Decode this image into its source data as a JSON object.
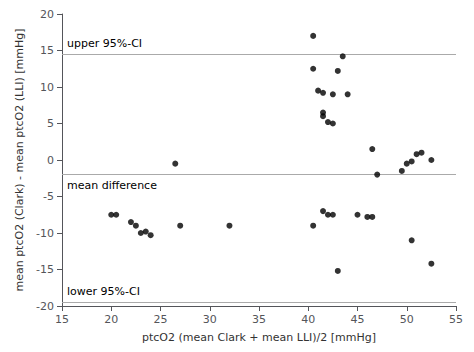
{
  "chart_data": {
    "type": "scatter",
    "x": [
      26.5,
      40.5,
      40.5,
      41.0,
      41.5,
      41.5,
      41.5,
      42.0,
      42.5,
      42.5,
      43.0,
      43.5,
      44.0,
      46.5,
      47.0,
      49.5,
      50.0,
      50.5,
      51.0,
      51.5,
      52.5,
      20.0,
      20.5,
      22.0,
      22.5,
      23.0,
      23.5,
      24.0,
      27.0,
      32.0,
      40.5,
      41.5,
      42.0,
      42.5,
      43.0,
      45.0,
      46.0,
      46.5,
      50.5,
      52.5
    ],
    "values": [
      -0.5,
      17.0,
      12.5,
      9.5,
      9.2,
      6.5,
      6.0,
      5.2,
      5.0,
      9.0,
      12.2,
      14.2,
      9.0,
      1.5,
      -2.0,
      -1.5,
      -0.5,
      -0.2,
      0.8,
      1.0,
      0.0,
      -7.5,
      -7.5,
      -8.5,
      -9.0,
      -10.0,
      -9.8,
      -10.3,
      -9.0,
      -9.0,
      -9.0,
      -7.0,
      -7.5,
      -7.5,
      -15.2,
      -7.5,
      -7.8,
      -7.8,
      -11.0,
      -14.2
    ],
    "color": "black",
    "xlim": [
      15,
      55
    ],
    "ylim": [
      -20,
      20
    ],
    "xticks": [
      15,
      20,
      25,
      30,
      35,
      40,
      45,
      50,
      55
    ],
    "yticks": [
      -20,
      -15,
      -10,
      -5,
      0,
      5,
      10,
      15,
      20
    ],
    "xlabel": "ptcO2 (mean Clark + mean LLI)/2 [mmHg]",
    "ylabel": "mean ptcO2 (Clark) - mean ptcO2 (LLI) [mmHg]",
    "grid": false,
    "reference_lines": [
      {
        "value": 14.5,
        "label": "upper 95%-CI",
        "color": "#aaaaaa"
      },
      {
        "value": -2.0,
        "label": "mean difference",
        "color": "#aaaaaa"
      },
      {
        "value": -19.5,
        "label": "lower 95%-CI",
        "color": "#aaaaaa"
      }
    ]
  }
}
